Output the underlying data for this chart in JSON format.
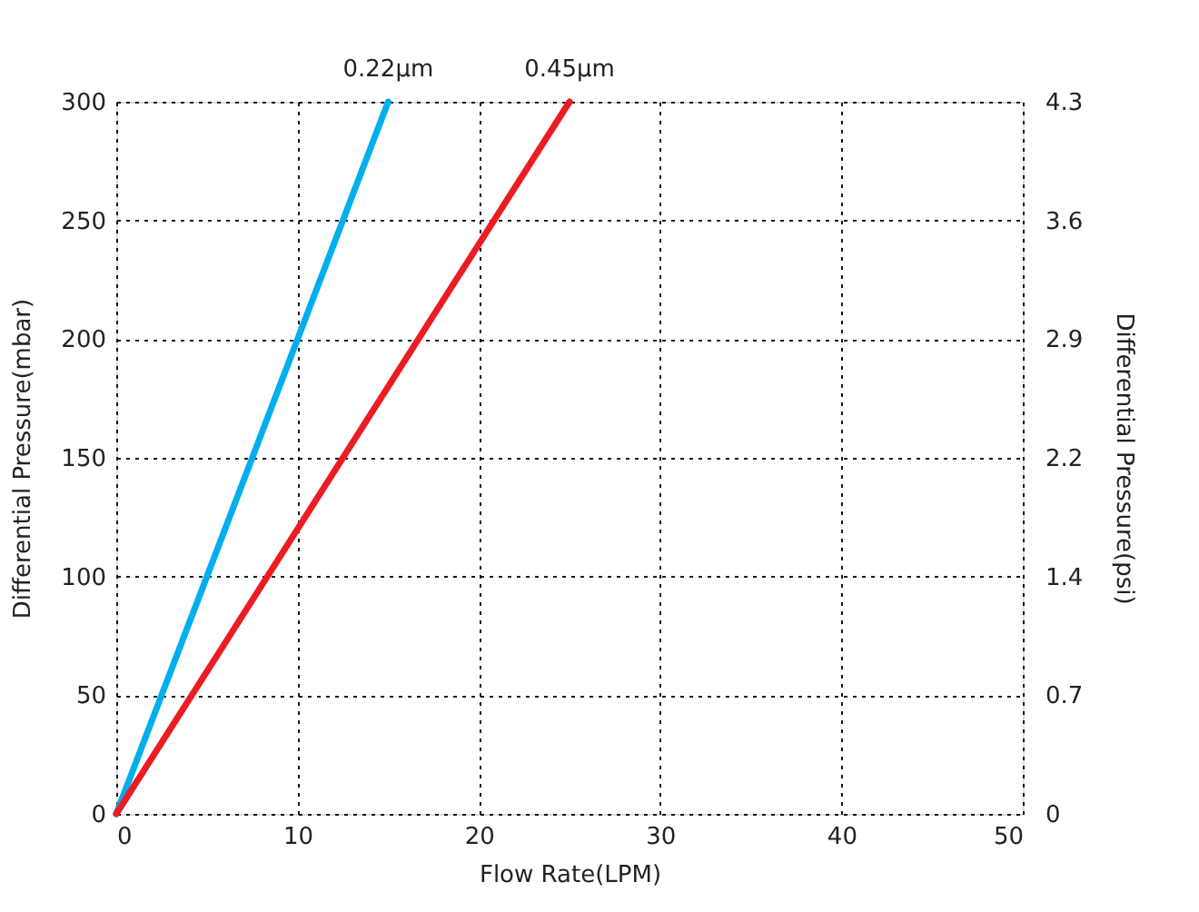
{
  "chart_data": {
    "type": "line",
    "xlabel": "Flow Rate(LPM)",
    "ylabel": "Differential Pressure(mbar)",
    "y2label": "Differential Pressure(psi)",
    "series": [
      {
        "name": "0.22μm",
        "color": "#00aeef",
        "x": [
          0,
          15
        ],
        "values": [
          0,
          300
        ]
      },
      {
        "name": "0.45μm",
        "color": "#ed1c24",
        "x": [
          0,
          25
        ],
        "values": [
          0,
          300
        ]
      }
    ],
    "xlim": [
      0,
      50
    ],
    "xticks": [
      0,
      10,
      20,
      30,
      40,
      50
    ],
    "ylim": [
      0,
      300
    ],
    "yticks": [
      0,
      50,
      100,
      150,
      200,
      250,
      300
    ],
    "y2lim": [
      0,
      4.35
    ],
    "y2ticks": [
      0,
      {
        "value": 0.725,
        "label": "0.7"
      },
      {
        "value": 1.45,
        "label": "1.4"
      },
      {
        "value": 2.175,
        "label": "2.2"
      },
      {
        "value": 2.9,
        "label": "2.9"
      },
      {
        "value": 3.625,
        "label": "3.6"
      },
      {
        "value": 4.35,
        "label": "4.3"
      }
    ],
    "grid": true,
    "marker": "none",
    "line_style": "solid"
  }
}
